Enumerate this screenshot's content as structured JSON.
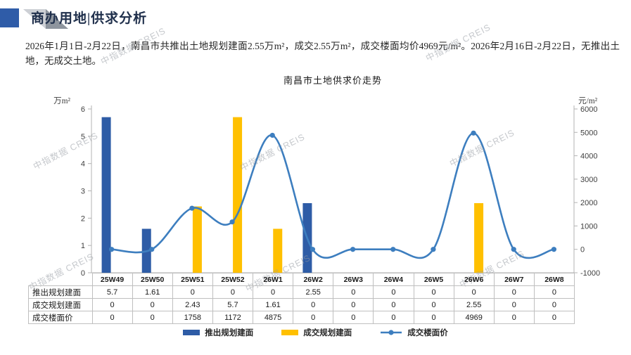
{
  "header": {
    "title": "商办用地|供求分析"
  },
  "summary": "2026年1月1日-2月22日，南昌市共推出土地规划建面2.55万m²，成交2.55万m²，成交楼面均价4969元/m²。2026年2月16日-2月22日，无推出土地，无成交土地。",
  "watermark": "中指数据 CREIS",
  "chart_data": {
    "type": "bar+line",
    "title": "南昌市土地供求价走势",
    "categories": [
      "25W49",
      "25W50",
      "25W51",
      "25W52",
      "26W1",
      "26W2",
      "26W3",
      "26W4",
      "26W5",
      "26W6",
      "26W7",
      "26W8"
    ],
    "series": [
      {
        "name": "推出规划建面",
        "type": "bar",
        "axis": "left",
        "color": "#2E5CA6",
        "values": [
          5.7,
          1.61,
          0,
          0,
          0,
          2.55,
          0,
          0,
          0,
          0,
          0,
          0
        ]
      },
      {
        "name": "成交规划建面",
        "type": "bar",
        "axis": "left",
        "color": "#FFC000",
        "values": [
          0,
          0,
          2.43,
          5.7,
          1.61,
          0,
          0,
          0,
          0,
          2.55,
          0,
          0
        ]
      },
      {
        "name": "成交楼面价",
        "type": "line",
        "axis": "right",
        "color": "#3D7EBF",
        "values": [
          0,
          0,
          1758,
          1172,
          4875,
          0,
          0,
          0,
          0,
          4969,
          0,
          0
        ]
      }
    ],
    "left_axis": {
      "unit": "万m²",
      "min": 0,
      "max": 6,
      "step": 1
    },
    "right_axis": {
      "unit": "元/m²",
      "min": -1000,
      "max": 6000,
      "step": 1000
    },
    "legend_position": "bottom",
    "grid": false
  },
  "table": {
    "rows": [
      {
        "label": "推出规划建面",
        "values": [
          "5.7",
          "1.61",
          "0",
          "0",
          "0",
          "2.55",
          "0",
          "0",
          "0",
          "0",
          "0",
          "0"
        ]
      },
      {
        "label": "成交规划建面",
        "values": [
          "0",
          "0",
          "2.43",
          "5.7",
          "1.61",
          "0",
          "0",
          "0",
          "0",
          "2.55",
          "0",
          "0"
        ]
      },
      {
        "label": "成交楼面价",
        "values": [
          "0",
          "0",
          "1758",
          "1172",
          "4875",
          "0",
          "0",
          "0",
          "0",
          "4969",
          "0",
          "0"
        ]
      }
    ]
  }
}
